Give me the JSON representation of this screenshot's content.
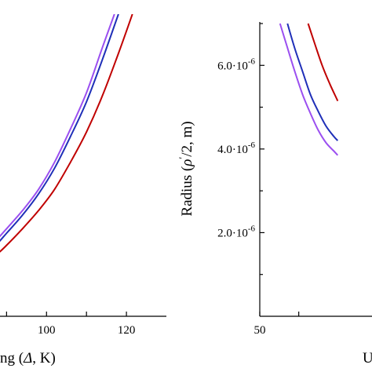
{
  "colors": {
    "background": "#ffffff",
    "axis": "#000000",
    "red": "#c00000",
    "blue": "#1f2fb8",
    "purple": "#9b4ff0"
  },
  "chart_data": [
    {
      "type": "line",
      "title": "",
      "xlabel": "ng (Δ, K)",
      "ylabel": "",
      "xlim": [
        86,
        130
      ],
      "ylim": [
        0,
        100
      ],
      "x_ticks": [
        100,
        120
      ],
      "x_tick_labels": [
        "100",
        "120"
      ],
      "y_ticks": [],
      "grid": false,
      "legend": "none",
      "series": [
        {
          "color": "#9b4ff0",
          "x": [
            86,
            88,
            90,
            94,
            98,
            102,
            106,
            110,
            114,
            117
          ],
          "y": [
            23,
            26,
            29,
            35,
            42,
            51,
            62,
            74,
            89,
            100
          ]
        },
        {
          "color": "#1f2fb8",
          "x": [
            86,
            88,
            90,
            94,
            98,
            102,
            106,
            110,
            114,
            118
          ],
          "y": [
            22,
            24.5,
            27.5,
            33.5,
            40.5,
            49,
            59.5,
            71,
            85,
            100
          ]
        },
        {
          "color": "#c00000",
          "x": [
            86,
            88,
            90,
            94,
            98,
            102,
            106,
            110,
            114,
            118,
            121.5
          ],
          "y": [
            19,
            21,
            23.5,
            29,
            35,
            42,
            51,
            61,
            73,
            87,
            100
          ]
        }
      ]
    },
    {
      "type": "line",
      "title": "",
      "xlabel": "U",
      "ylabel": "Radius (ρ′/2, m)",
      "xlim": [
        50,
        80
      ],
      "ylim": [
        0,
        7e-06
      ],
      "x_ticks": [
        50
      ],
      "x_tick_labels": [
        "50"
      ],
      "y_ticks": [
        2e-06,
        4e-06,
        6e-06
      ],
      "y_tick_labels": [
        {
          "mantissa": "2.0",
          "dot": "·",
          "base": "10",
          "exp": "-6"
        },
        {
          "mantissa": "4.0",
          "dot": "·",
          "base": "10",
          "exp": "-6"
        },
        {
          "mantissa": "6.0",
          "dot": "·",
          "base": "10",
          "exp": "-6"
        }
      ],
      "grid": false,
      "legend": "none",
      "series": [
        {
          "color": "#c00000",
          "x": [
            62.4,
            64,
            66,
            68,
            70
          ],
          "y": [
            7e-06,
            6.55e-06,
            6e-06,
            5.55e-06,
            5.15e-06
          ]
        },
        {
          "color": "#1f2fb8",
          "x": [
            57.1,
            59,
            61,
            63,
            65,
            67,
            69,
            70
          ],
          "y": [
            7e-06,
            6.4e-06,
            5.85e-06,
            5.3e-06,
            4.9e-06,
            4.55e-06,
            4.3e-06,
            4.2e-06
          ]
        },
        {
          "color": "#9b4ff0",
          "x": [
            55.2,
            57,
            59,
            61,
            63,
            65,
            67,
            69,
            70
          ],
          "y": [
            7e-06,
            6.45e-06,
            5.85e-06,
            5.3e-06,
            4.85e-06,
            4.45e-06,
            4.15e-06,
            3.95e-06,
            3.85e-06
          ]
        }
      ]
    }
  ]
}
